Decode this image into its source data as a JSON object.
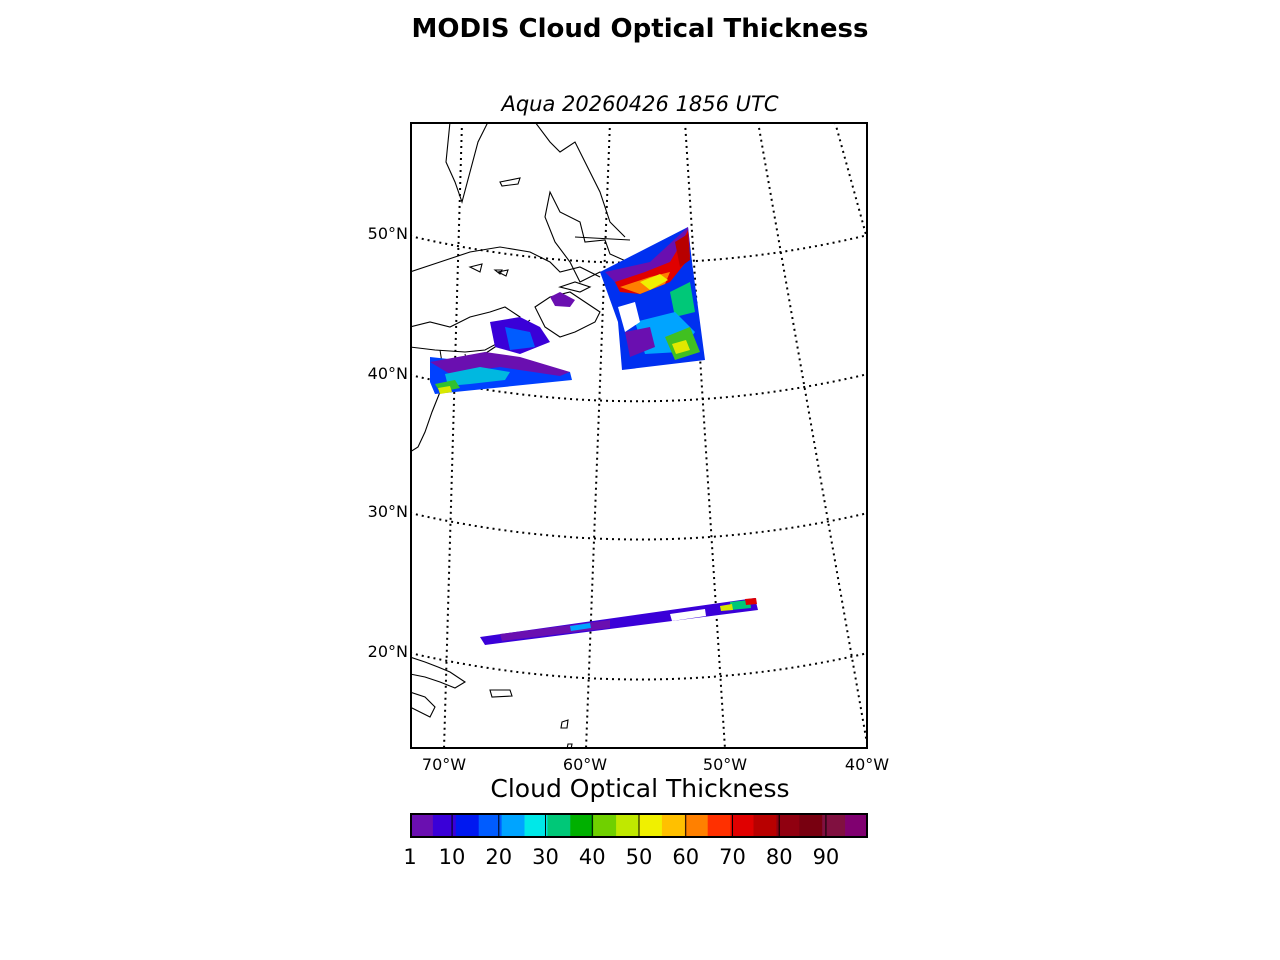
{
  "title": "MODIS Cloud Optical Thickness",
  "subtitle": "Aqua 20260426 1856 UTC",
  "colorbar": {
    "label": "Cloud Optical Thickness",
    "ticks": [
      "1",
      "10",
      "20",
      "30",
      "40",
      "50",
      "60",
      "70",
      "80",
      "90"
    ],
    "min": 1,
    "max": 99,
    "colors": [
      "#6a0fb0",
      "#3a00d8",
      "#0018f0",
      "#005cff",
      "#00a4ff",
      "#00e8e8",
      "#00c878",
      "#00b000",
      "#70d000",
      "#c0e800",
      "#f0f000",
      "#ffc000",
      "#ff8000",
      "#ff3000",
      "#e00000",
      "#b80000",
      "#900010",
      "#780010",
      "#801040",
      "#800070"
    ]
  },
  "map": {
    "projection": "Lambert conformal",
    "lat_labels": [
      "50°N",
      "40°N",
      "30°N",
      "20°N"
    ],
    "lon_labels": [
      "70°W",
      "60°W",
      "50°W",
      "40°W"
    ]
  }
}
